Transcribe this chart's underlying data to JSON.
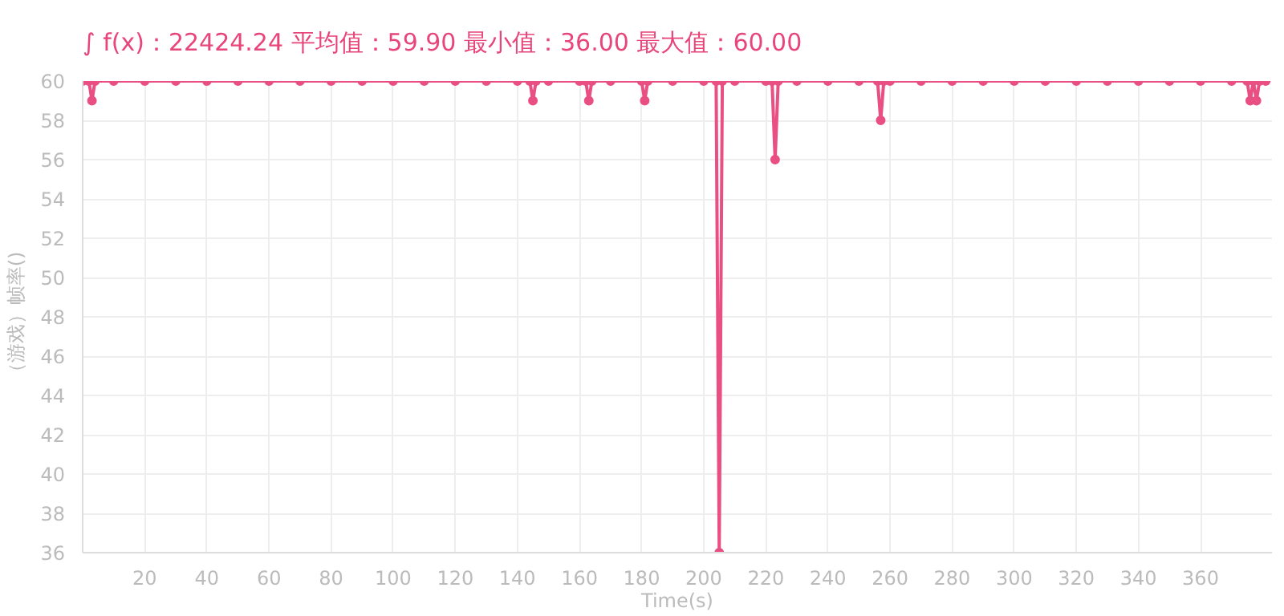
{
  "chart_data": {
    "type": "line",
    "title": "∫ f(x)：22424.24  平均值：59.90  最小值：36.00  最大值：60.00",
    "xlabel": "Time(s)",
    "ylabel": "（游戏）帧率()",
    "x": [
      0,
      2,
      3,
      4,
      10,
      20,
      30,
      40,
      50,
      60,
      70,
      80,
      90,
      100,
      110,
      120,
      130,
      140,
      144,
      145,
      146,
      150,
      160,
      162,
      163,
      164,
      170,
      180,
      181,
      182,
      190,
      200,
      204,
      205,
      206,
      210,
      220,
      222,
      223,
      224,
      230,
      240,
      250,
      256,
      257,
      258,
      260,
      270,
      280,
      290,
      300,
      310,
      320,
      330,
      340,
      350,
      360,
      370,
      375,
      376,
      377,
      378,
      379,
      381
    ],
    "series": [
      {
        "color": "#e94f83",
        "values": [
          60,
          60,
          59,
          60,
          60,
          60,
          60,
          60,
          60,
          60,
          60,
          60,
          60,
          60,
          60,
          60,
          60,
          60,
          60,
          59,
          60,
          60,
          60,
          60,
          59,
          60,
          60,
          60,
          59,
          60,
          60,
          60,
          60,
          36,
          60,
          60,
          60,
          60,
          56,
          60,
          60,
          60,
          60,
          60,
          58,
          60,
          60,
          60,
          60,
          60,
          60,
          60,
          60,
          60,
          60,
          60,
          60,
          60,
          60,
          59,
          60,
          59,
          60,
          60
        ]
      }
    ],
    "xlim": [
      0,
      383
    ],
    "ylim": [
      36,
      60
    ],
    "xticks": [
      20,
      40,
      60,
      80,
      100,
      120,
      140,
      160,
      180,
      200,
      220,
      240,
      260,
      280,
      300,
      320,
      340,
      360
    ],
    "yticks": [
      36,
      38,
      40,
      42,
      44,
      46,
      48,
      50,
      52,
      54,
      56,
      58,
      60
    ],
    "grid": true,
    "marker": "circle",
    "line_style": "solid"
  }
}
